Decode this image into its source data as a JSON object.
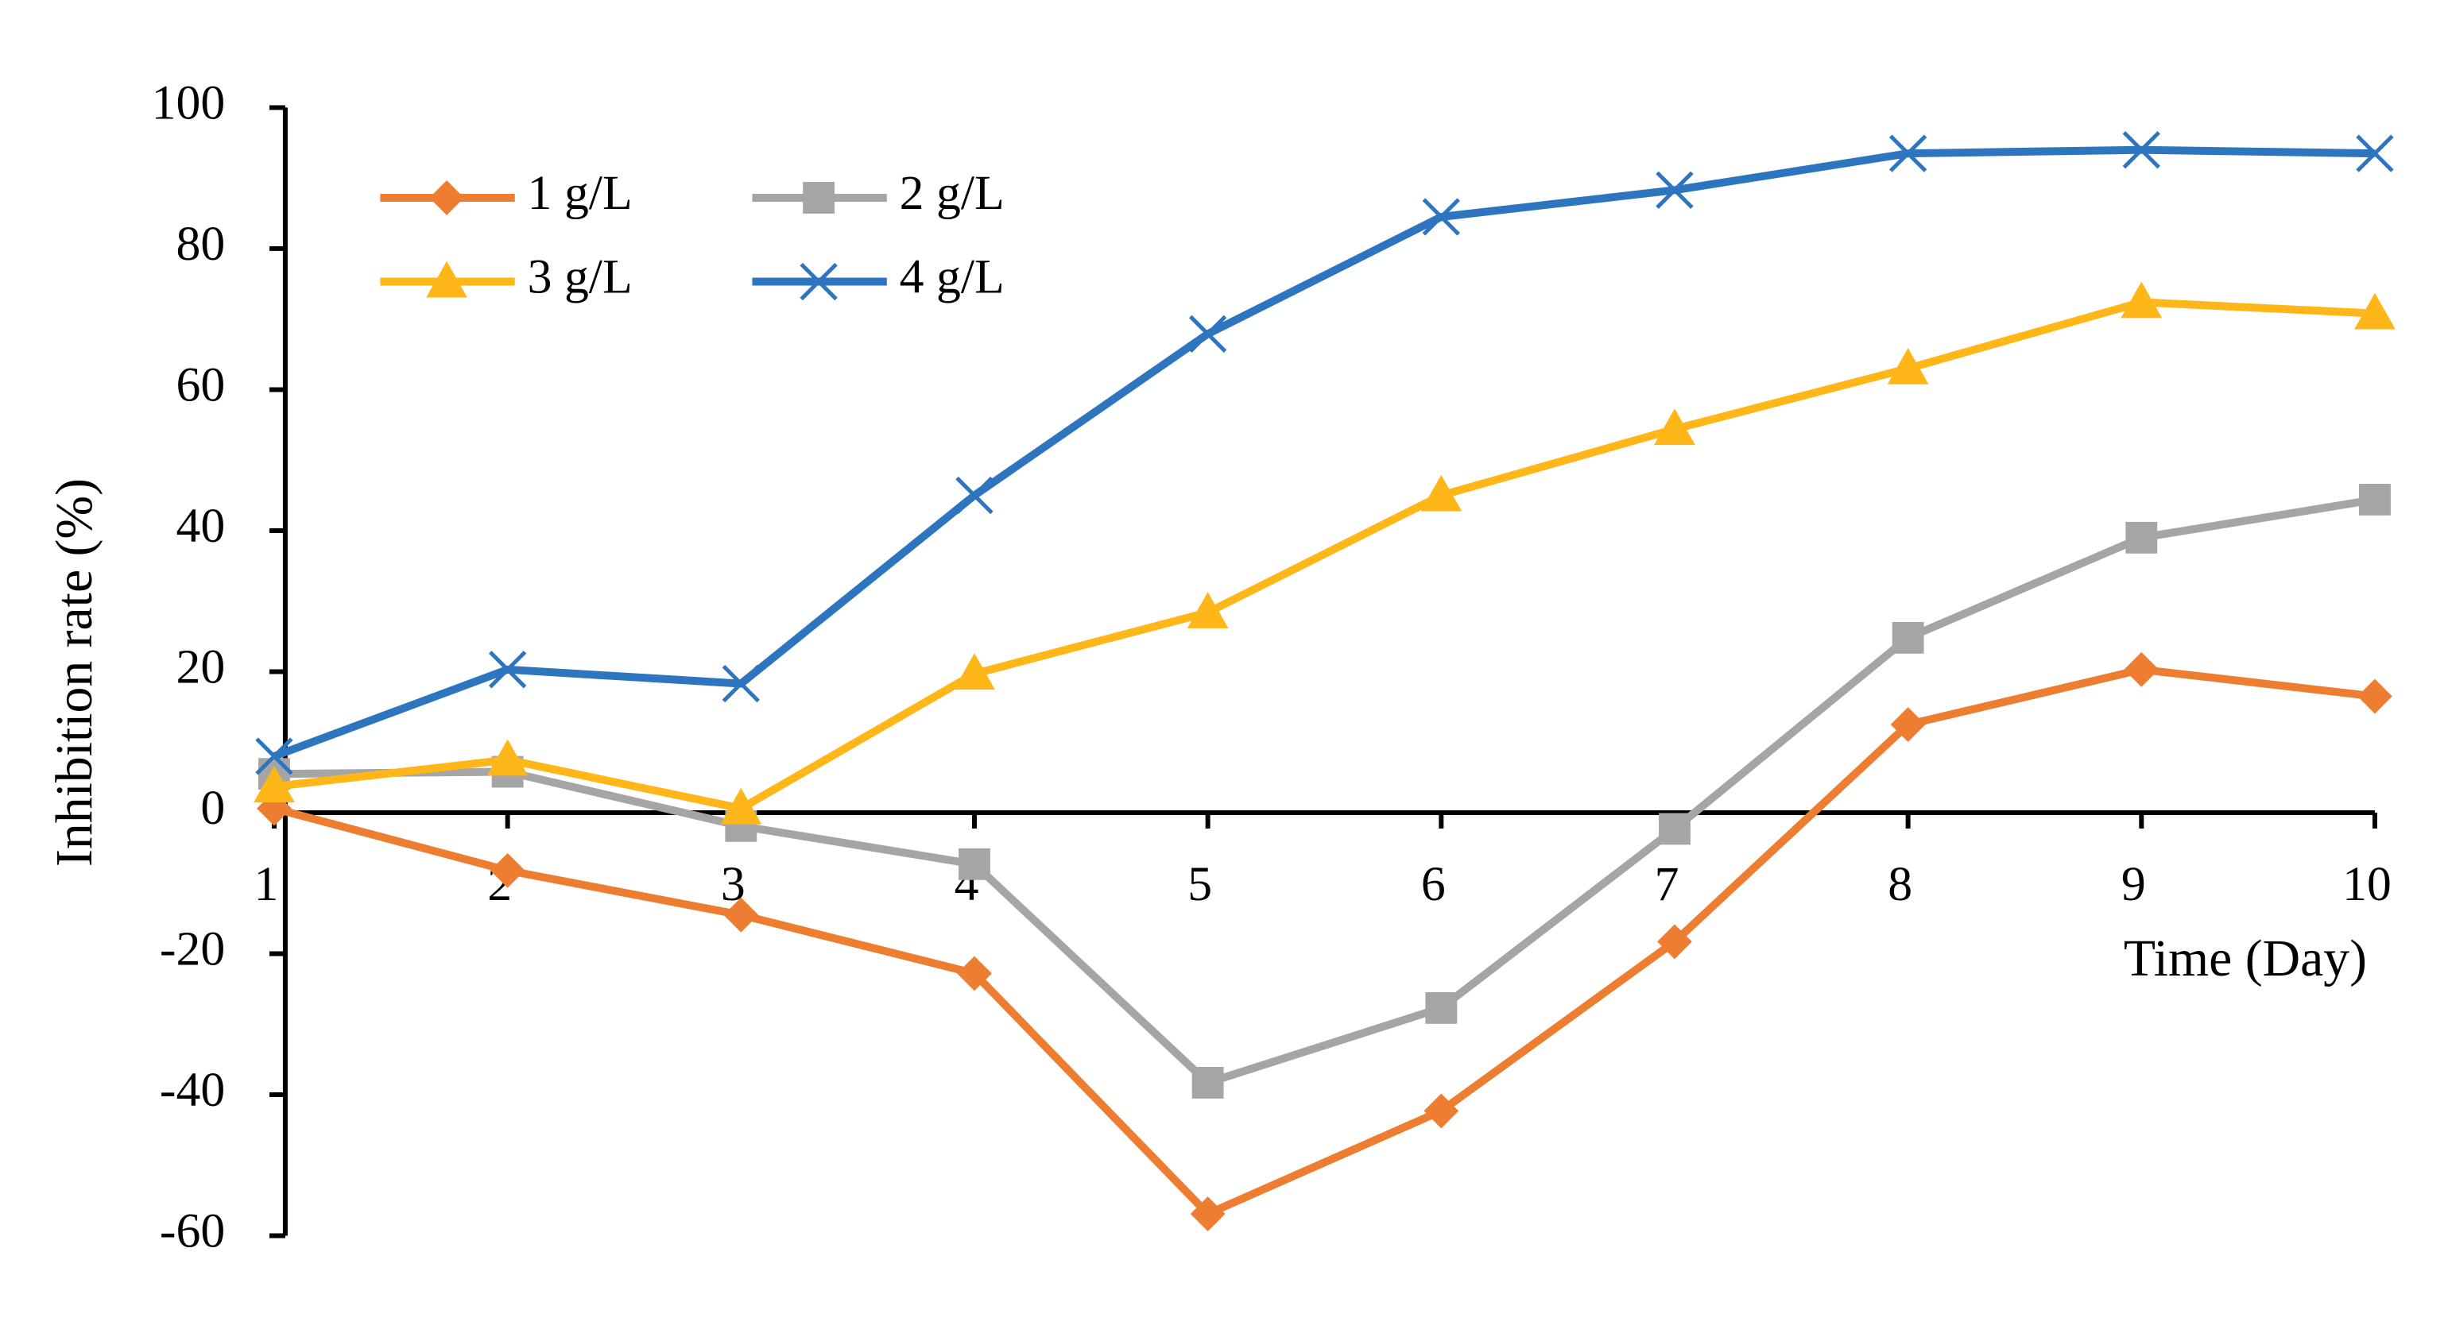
{
  "chart_data": {
    "type": "line",
    "x_label": "Time (Day)",
    "y_label": "Inhibition rate (%)",
    "x": [
      1,
      2,
      3,
      4,
      5,
      6,
      7,
      8,
      9,
      10
    ],
    "xlim": [
      1,
      10
    ],
    "xticks": [
      1,
      2,
      3,
      4,
      5,
      6,
      7,
      8,
      9,
      10
    ],
    "ylim": [
      -60,
      100
    ],
    "yticks": [
      -60,
      -40,
      -20,
      0,
      20,
      40,
      60,
      80,
      100
    ],
    "grid": false,
    "legend": "top-left",
    "series": [
      {
        "name": "1 g/L",
        "color": "#ED7D31",
        "marker": "diamond",
        "values": [
          0.6,
          -8.2,
          -14.5,
          -22.8,
          -56.9,
          -42.3,
          -18.3,
          12.5,
          20.3,
          16.5
        ]
      },
      {
        "name": "2 g/L",
        "color": "#A5A5A5",
        "marker": "square",
        "values": [
          5.5,
          5.8,
          -1.9,
          -7.3,
          -38.3,
          -27.7,
          -2.3,
          24.8,
          39,
          44.4
        ]
      },
      {
        "name": "3 g/L",
        "color": "#FFB618",
        "marker": "triangle",
        "values": [
          3.7,
          7.5,
          0.6,
          19.7,
          28.4,
          45,
          54.4,
          63,
          72.4,
          70.8
        ]
      },
      {
        "name": "4 g/L",
        "color": "#2E75C0",
        "marker": "cross",
        "values": [
          8,
          20.3,
          18.3,
          45,
          67.9,
          84.5,
          88.3,
          93.5,
          94,
          93.5
        ]
      }
    ]
  }
}
